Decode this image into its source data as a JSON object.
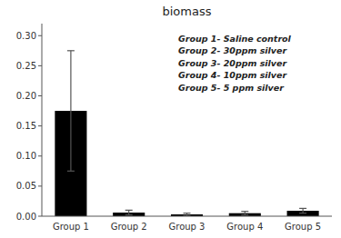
{
  "chart_data": {
    "type": "bar",
    "title": "biomass",
    "categories": [
      "Group 1",
      "Group 2",
      "Group 3",
      "Group 4",
      "Group 5"
    ],
    "values": [
      0.175,
      0.006,
      0.003,
      0.005,
      0.009
    ],
    "errors": [
      0.1,
      0.004,
      0.002,
      0.003,
      0.004
    ],
    "color": "#000000",
    "ylim": [
      0,
      0.32
    ],
    "yticks": [
      {
        "value": 0,
        "label": "0.00"
      },
      0.05,
      {
        "value": 0.1,
        "label": "0.10"
      },
      0.15,
      {
        "value": 0.2,
        "label": "0.20"
      },
      0.25,
      {
        "value": 0.3,
        "label": "0.30"
      }
    ],
    "grid": false,
    "annotations": [
      "Group 1- Saline control",
      "Group 2- 30ppm silver",
      "Group 3- 20ppm silver",
      "Group 4- 10ppm silver",
      "Group 5- 5 ppm silver"
    ]
  }
}
